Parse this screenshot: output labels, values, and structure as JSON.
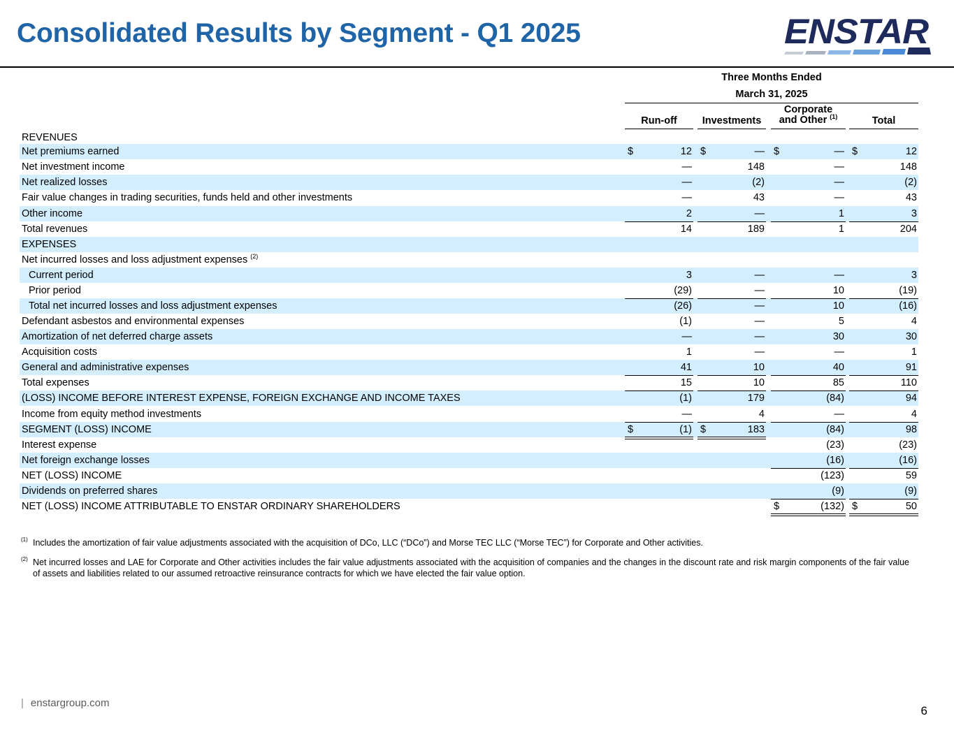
{
  "title": "Consolidated Results by Segment - Q1 2025",
  "logo": {
    "text": "ENSTAR"
  },
  "header": {
    "period": "Three Months Ended",
    "date": "March 31, 2025",
    "columns": [
      "Run-off",
      "Investments",
      "Corporate",
      "and Other",
      "Total"
    ],
    "corporate_note_marker": "(1)"
  },
  "rows": [
    {
      "label": "REVENUES",
      "cells": [
        "",
        "",
        "",
        ""
      ]
    },
    {
      "label": "Net premiums earned",
      "cells": [
        "12",
        "—",
        "—",
        "12"
      ],
      "dollar": [
        true,
        true,
        true,
        true
      ]
    },
    {
      "label": "Net investment income",
      "cells": [
        "—",
        "148",
        "—",
        "148"
      ]
    },
    {
      "label": "Net realized losses",
      "cells": [
        "—",
        "(2)",
        "—",
        "(2)"
      ]
    },
    {
      "label": "Fair value changes in trading securities, funds held and other investments",
      "cells": [
        "—",
        "43",
        "—",
        "43"
      ]
    },
    {
      "label": "Other income",
      "cells": [
        "2",
        "—",
        "1",
        "3"
      ]
    },
    {
      "label": "Total revenues",
      "cells": [
        "14",
        "189",
        "1",
        "204"
      ]
    },
    {
      "label": "EXPENSES",
      "cells": [
        "",
        "",
        "",
        ""
      ]
    },
    {
      "label": "Net incurred losses and loss adjustment expenses",
      "note": "(2)",
      "cells": [
        "",
        "",
        "",
        ""
      ]
    },
    {
      "label": "Current period",
      "indent": true,
      "cells": [
        "3",
        "—",
        "—",
        "3"
      ]
    },
    {
      "label": "Prior period",
      "indent": true,
      "cells": [
        "(29)",
        "—",
        "10",
        "(19)"
      ]
    },
    {
      "label": "Total net incurred losses and loss adjustment expenses",
      "indent": true,
      "cells": [
        "(26)",
        "—",
        "10",
        "(16)"
      ]
    },
    {
      "label": "Defendant asbestos and environmental expenses",
      "cells": [
        "(1)",
        "—",
        "5",
        "4"
      ]
    },
    {
      "label": "Amortization of net deferred charge assets",
      "cells": [
        "—",
        "—",
        "30",
        "30"
      ]
    },
    {
      "label": "Acquisition costs",
      "cells": [
        "1",
        "—",
        "—",
        "1"
      ]
    },
    {
      "label": "General and administrative expenses",
      "cells": [
        "41",
        "10",
        "40",
        "91"
      ]
    },
    {
      "label": "Total expenses",
      "cells": [
        "15",
        "10",
        "85",
        "110"
      ]
    },
    {
      "label": "(LOSS) INCOME BEFORE INTEREST EXPENSE, FOREIGN EXCHANGE AND INCOME TAXES",
      "cells": [
        "(1)",
        "179",
        "(84)",
        "94"
      ]
    },
    {
      "label": "Income from equity method investments",
      "cells": [
        "—",
        "4",
        "—",
        "4"
      ]
    },
    {
      "label": "SEGMENT (LOSS) INCOME",
      "cells": [
        "(1)",
        "183",
        "(84)",
        "98"
      ],
      "dollar": [
        true,
        true,
        false,
        false
      ]
    },
    {
      "label": "Interest expense",
      "cells": [
        "",
        "",
        "(23)",
        "(23)"
      ]
    },
    {
      "label": "Net foreign exchange losses",
      "cells": [
        "",
        "",
        "(16)",
        "(16)"
      ]
    },
    {
      "label": "NET (LOSS) INCOME",
      "cells": [
        "",
        "",
        "(123)",
        "59"
      ]
    },
    {
      "label": "Dividends on preferred shares",
      "cells": [
        "",
        "",
        "(9)",
        "(9)"
      ]
    },
    {
      "label": "NET (LOSS) INCOME  ATTRIBUTABLE TO ENSTAR ORDINARY SHAREHOLDERS",
      "cells": [
        "",
        "",
        "(132)",
        "50"
      ],
      "dollar": [
        false,
        false,
        true,
        true
      ]
    }
  ],
  "dollar_sign": "$",
  "footnotes": [
    {
      "mark": "(1)",
      "text": "Includes the amortization of fair value adjustments associated with the acquisition of DCo, LLC (“DCo”) and Morse TEC LLC (“Morse TEC”) for Corporate and Other activities."
    },
    {
      "mark": "(2)",
      "text": "Net incurred losses and LAE for Corporate and Other activities includes the fair value adjustments associated with the acquisition of companies and the changes in the discount rate and risk margin components of the fair value of assets and liabilities related to our assumed retroactive reinsurance contracts for which we have elected the fair value option."
    }
  ],
  "footer": {
    "website": "enstargroup.com",
    "page": "6"
  },
  "colors": {
    "title": "#1f64a6",
    "shade": "#d3efff",
    "logo_dark": "#1f2a5c",
    "logo_light": "#6aa3e0"
  }
}
